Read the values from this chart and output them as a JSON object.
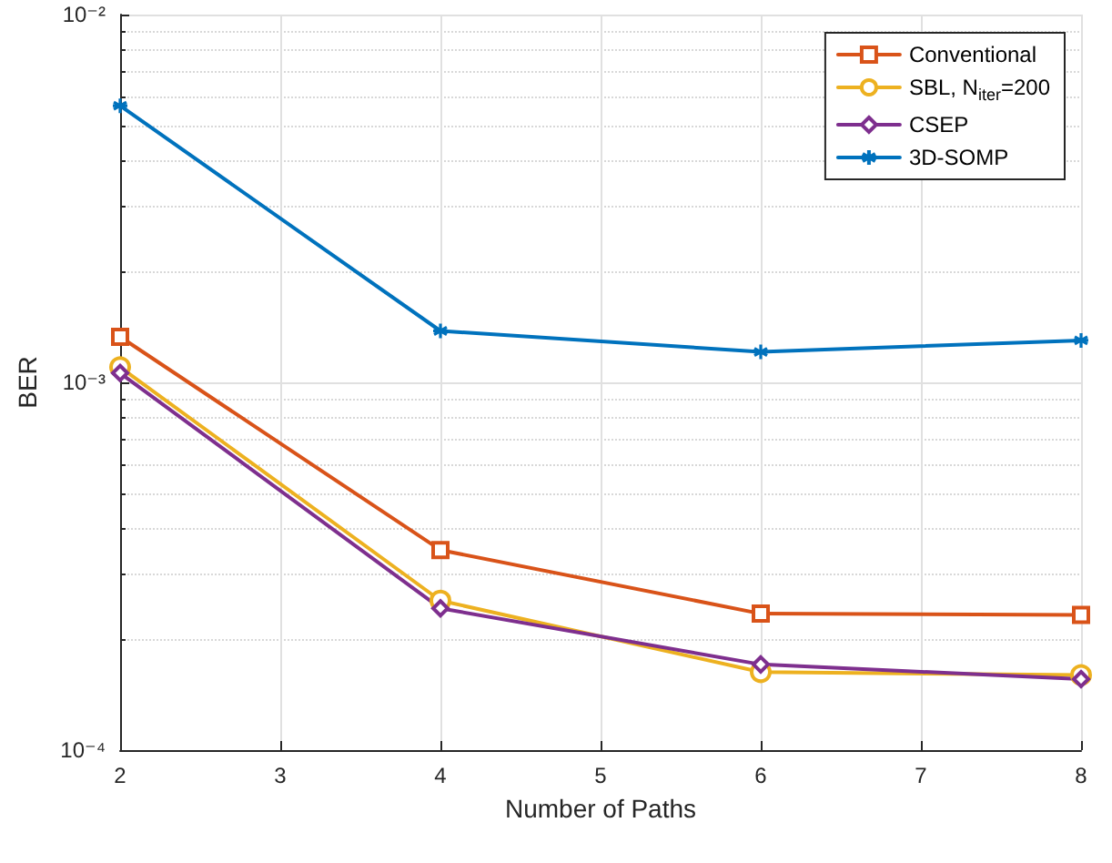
{
  "chart_data": {
    "type": "line",
    "xlabel": "Number of Paths",
    "ylabel": "BER",
    "x": [
      2,
      4,
      6,
      8
    ],
    "xlim": [
      2,
      8
    ],
    "xticks": [
      2,
      3,
      4,
      5,
      6,
      7,
      8
    ],
    "ylim": [
      0.0001,
      0.01
    ],
    "yticks": [
      {
        "value": 0.0001,
        "label": "10⁻⁴"
      },
      {
        "value": 0.001,
        "label": "10⁻³"
      },
      {
        "value": 0.01,
        "label": "10⁻²"
      }
    ],
    "log": "y",
    "grid": true,
    "legend": "top right",
    "line_style": "solid",
    "series": [
      {
        "name": "Conventional",
        "color": "#d95319",
        "marker": "square",
        "values": [
          0.00133,
          0.00035,
          0.000235,
          0.000233
        ]
      },
      {
        "name": "SBL, N$_{iter}$=200",
        "color": "#edb120",
        "marker": "circle",
        "values": [
          0.0011,
          0.000255,
          0.000163,
          0.00016
        ]
      },
      {
        "name": "CSEP",
        "color": "#7e2f8e",
        "marker": "diamond",
        "values": [
          0.00106,
          0.000243,
          0.000171,
          0.000156
        ]
      },
      {
        "name": "3D-SOMP",
        "color": "#0072bd",
        "marker": "cross",
        "values": [
          0.00565,
          0.00138,
          0.00121,
          0.0013
        ]
      }
    ]
  }
}
